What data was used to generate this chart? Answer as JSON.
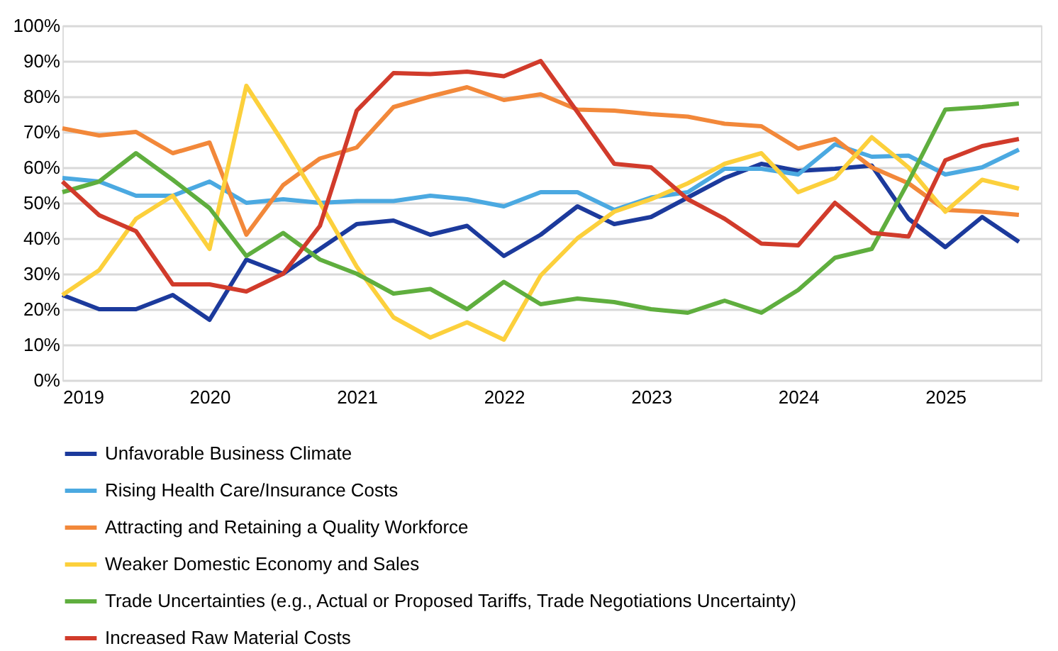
{
  "chart_data": {
    "type": "line",
    "x": [
      2019,
      2019.25,
      2019.5,
      2019.75,
      2020,
      2020.25,
      2020.5,
      2020.75,
      2021,
      2021.25,
      2021.5,
      2021.75,
      2022,
      2022.25,
      2022.5,
      2022.75,
      2023,
      2023.25,
      2023.5,
      2023.75,
      2024,
      2024.25,
      2024.5,
      2024.75,
      2025,
      2025.25,
      2025.5
    ],
    "xlim": [
      2019,
      2025.65
    ],
    "xticks": [
      2019,
      2020,
      2021,
      2022,
      2023,
      2024,
      2025
    ],
    "ylim": [
      0,
      100
    ],
    "yticks": [
      {
        "value": 0,
        "label": "0%"
      },
      {
        "value": 10,
        "label": "10%"
      },
      {
        "value": 20,
        "label": "20%"
      },
      {
        "value": 30,
        "label": "30%"
      },
      {
        "value": 40,
        "label": "40%"
      },
      {
        "value": 50,
        "label": "50%"
      },
      {
        "value": 60,
        "label": "60%"
      },
      {
        "value": 70,
        "label": "70%"
      },
      {
        "value": 80,
        "label": "80%"
      },
      {
        "value": 90,
        "label": "90%"
      },
      {
        "value": 100,
        "label": "100%"
      }
    ],
    "grid": "y",
    "legend": "bottom",
    "marker": "none",
    "line_style": "solid",
    "series": [
      {
        "name": "Unfavorable Business Climate",
        "color": "#1c3a9c",
        "values": [
          24,
          20,
          20,
          24,
          17,
          34,
          30,
          37,
          44,
          45,
          41,
          43.5,
          35,
          41,
          49,
          44,
          46,
          51.5,
          57,
          61,
          59,
          59.6,
          60.5,
          45.5,
          37.5,
          46,
          39
        ]
      },
      {
        "name": "Rising Health Care/Insurance Costs",
        "color": "#4ba9e1",
        "values": [
          57,
          56,
          52,
          52,
          56,
          50,
          51,
          50,
          50.5,
          50.5,
          52,
          51,
          49,
          53,
          53,
          48,
          51.5,
          53,
          59.6,
          59.6,
          58,
          66.5,
          63,
          63.3,
          58,
          60,
          65
        ]
      },
      {
        "name": "Attracting and Retaining a Quality Workforce",
        "color": "#f2883a",
        "values": [
          71,
          69,
          70,
          64,
          67,
          41,
          55,
          62.5,
          65.6,
          77,
          80,
          82.6,
          79,
          80.6,
          76.3,
          76,
          75,
          74.3,
          72.3,
          71.6,
          65.3,
          68,
          60,
          55.5,
          48,
          47.5,
          46.6
        ]
      },
      {
        "name": "Weaker Domestic Economy and Sales",
        "color": "#fcd03c",
        "values": [
          24,
          31,
          45.5,
          52,
          37,
          83,
          67,
          50,
          32,
          17.7,
          12,
          16.3,
          11.4,
          29.5,
          40,
          47.5,
          51,
          55.5,
          61,
          64,
          53,
          57,
          68.5,
          60,
          47.5,
          56.5,
          54
        ]
      },
      {
        "name": "Trade Uncertainties (e.g., Actual or Proposed Tariffs, Trade Negotiations Uncertainty)",
        "color": "#5fae3e",
        "values": [
          53,
          56,
          64,
          56.5,
          48.5,
          35,
          41.5,
          34,
          30,
          24.4,
          25.7,
          20,
          27.7,
          21.4,
          23,
          22,
          20,
          19,
          22.4,
          19,
          25.4,
          34.5,
          37,
          56,
          76.3,
          77,
          78
        ]
      },
      {
        "name": "Increased Raw Material Costs",
        "color": "#d13b2b",
        "values": [
          56,
          46.5,
          42,
          27,
          27,
          25,
          30,
          43.5,
          76,
          86.6,
          86.3,
          87,
          85.7,
          90,
          75.6,
          61,
          60,
          51,
          45.5,
          38.5,
          38,
          50,
          41.5,
          40.5,
          62,
          66,
          68
        ]
      }
    ]
  }
}
